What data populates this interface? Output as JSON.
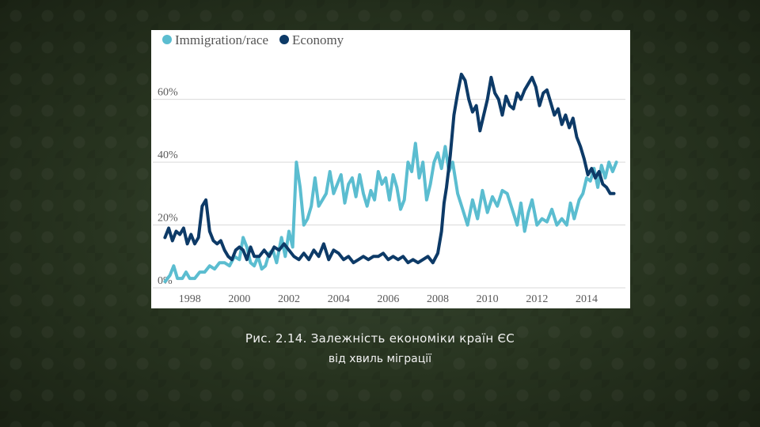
{
  "chart_data": {
    "type": "line",
    "title": "",
    "xlabel": "",
    "ylabel": "",
    "xlim": [
      1996.7,
      2015.5
    ],
    "ylim": [
      0,
      72
    ],
    "yticks": [
      0,
      20,
      40,
      60
    ],
    "ytick_labels": [
      "0%",
      "20%",
      "40%",
      "60%"
    ],
    "xticks": [
      1998,
      2000,
      2002,
      2004,
      2006,
      2008,
      2010,
      2012,
      2014
    ],
    "xtick_labels": [
      "1998",
      "2000",
      "2002",
      "2004",
      "2006",
      "2008",
      "2010",
      "2012",
      "2014"
    ],
    "grid": "horizontal",
    "legend": "top-left",
    "series": [
      {
        "name": "Immigration/race",
        "color": "#5bbdd0",
        "points": [
          [
            1997.0,
            2
          ],
          [
            1997.2,
            4
          ],
          [
            1997.35,
            7
          ],
          [
            1997.5,
            3
          ],
          [
            1997.7,
            3
          ],
          [
            1997.85,
            5
          ],
          [
            1998.0,
            3
          ],
          [
            1998.2,
            3
          ],
          [
            1998.4,
            5
          ],
          [
            1998.6,
            5
          ],
          [
            1998.8,
            7
          ],
          [
            1999.0,
            6
          ],
          [
            1999.2,
            8
          ],
          [
            1999.4,
            8
          ],
          [
            1999.6,
            7
          ],
          [
            1999.8,
            10
          ],
          [
            2000.0,
            9
          ],
          [
            2000.15,
            16
          ],
          [
            2000.3,
            13
          ],
          [
            2000.45,
            8
          ],
          [
            2000.6,
            7
          ],
          [
            2000.75,
            10
          ],
          [
            2000.9,
            6
          ],
          [
            2001.05,
            7
          ],
          [
            2001.2,
            11
          ],
          [
            2001.35,
            12
          ],
          [
            2001.5,
            8
          ],
          [
            2001.7,
            16
          ],
          [
            2001.85,
            10
          ],
          [
            2002.0,
            18
          ],
          [
            2002.15,
            13
          ],
          [
            2002.3,
            40
          ],
          [
            2002.45,
            32
          ],
          [
            2002.6,
            20
          ],
          [
            2002.75,
            22
          ],
          [
            2002.9,
            26
          ],
          [
            2003.05,
            35
          ],
          [
            2003.2,
            26
          ],
          [
            2003.35,
            28
          ],
          [
            2003.5,
            30
          ],
          [
            2003.65,
            37
          ],
          [
            2003.8,
            30
          ],
          [
            2003.95,
            33
          ],
          [
            2004.1,
            36
          ],
          [
            2004.25,
            27
          ],
          [
            2004.4,
            33
          ],
          [
            2004.55,
            35
          ],
          [
            2004.7,
            29
          ],
          [
            2004.85,
            36
          ],
          [
            2005.0,
            30
          ],
          [
            2005.15,
            26
          ],
          [
            2005.3,
            31
          ],
          [
            2005.45,
            28
          ],
          [
            2005.6,
            37
          ],
          [
            2005.75,
            33
          ],
          [
            2005.9,
            35
          ],
          [
            2006.05,
            28
          ],
          [
            2006.2,
            36
          ],
          [
            2006.35,
            32
          ],
          [
            2006.5,
            25
          ],
          [
            2006.65,
            28
          ],
          [
            2006.8,
            40
          ],
          [
            2006.95,
            37
          ],
          [
            2007.1,
            46
          ],
          [
            2007.25,
            35
          ],
          [
            2007.4,
            40
          ],
          [
            2007.55,
            28
          ],
          [
            2007.7,
            33
          ],
          [
            2007.85,
            40
          ],
          [
            2008.0,
            43
          ],
          [
            2008.15,
            38
          ],
          [
            2008.3,
            45
          ],
          [
            2008.45,
            37
          ],
          [
            2008.6,
            40
          ],
          [
            2008.8,
            30
          ],
          [
            2009.0,
            25
          ],
          [
            2009.2,
            20
          ],
          [
            2009.4,
            28
          ],
          [
            2009.6,
            22
          ],
          [
            2009.8,
            31
          ],
          [
            2010.0,
            24
          ],
          [
            2010.2,
            29
          ],
          [
            2010.4,
            26
          ],
          [
            2010.6,
            31
          ],
          [
            2010.8,
            30
          ],
          [
            2011.0,
            25
          ],
          [
            2011.2,
            20
          ],
          [
            2011.35,
            27
          ],
          [
            2011.5,
            18
          ],
          [
            2011.65,
            24
          ],
          [
            2011.8,
            28
          ],
          [
            2012.0,
            20
          ],
          [
            2012.2,
            22
          ],
          [
            2012.4,
            21
          ],
          [
            2012.6,
            25
          ],
          [
            2012.8,
            20
          ],
          [
            2013.0,
            22
          ],
          [
            2013.2,
            20
          ],
          [
            2013.35,
            27
          ],
          [
            2013.5,
            22
          ],
          [
            2013.7,
            28
          ],
          [
            2013.85,
            30
          ],
          [
            2014.0,
            35
          ],
          [
            2014.15,
            34
          ],
          [
            2014.3,
            38
          ],
          [
            2014.45,
            32
          ],
          [
            2014.6,
            39
          ],
          [
            2014.75,
            35
          ],
          [
            2014.9,
            40
          ],
          [
            2015.05,
            37
          ],
          [
            2015.2,
            40
          ]
        ]
      },
      {
        "name": "Economy",
        "color": "#0d3a67",
        "points": [
          [
            1997.0,
            16
          ],
          [
            1997.15,
            19
          ],
          [
            1997.3,
            15
          ],
          [
            1997.45,
            18
          ],
          [
            1997.6,
            17
          ],
          [
            1997.75,
            19
          ],
          [
            1997.9,
            14
          ],
          [
            1998.05,
            17
          ],
          [
            1998.2,
            14
          ],
          [
            1998.35,
            16
          ],
          [
            1998.5,
            26
          ],
          [
            1998.65,
            28
          ],
          [
            1998.8,
            18
          ],
          [
            1998.95,
            15
          ],
          [
            1999.1,
            14
          ],
          [
            1999.25,
            15
          ],
          [
            1999.4,
            12
          ],
          [
            1999.55,
            10
          ],
          [
            1999.7,
            9
          ],
          [
            1999.85,
            12
          ],
          [
            2000.0,
            13
          ],
          [
            2000.15,
            12
          ],
          [
            2000.3,
            9
          ],
          [
            2000.45,
            13
          ],
          [
            2000.6,
            10
          ],
          [
            2000.8,
            10
          ],
          [
            2001.0,
            12
          ],
          [
            2001.2,
            10
          ],
          [
            2001.4,
            13
          ],
          [
            2001.6,
            12
          ],
          [
            2001.8,
            14
          ],
          [
            2002.0,
            12
          ],
          [
            2002.2,
            10
          ],
          [
            2002.4,
            9
          ],
          [
            2002.6,
            11
          ],
          [
            2002.8,
            9
          ],
          [
            2003.0,
            12
          ],
          [
            2003.2,
            10
          ],
          [
            2003.4,
            14
          ],
          [
            2003.6,
            9
          ],
          [
            2003.8,
            12
          ],
          [
            2004.0,
            11
          ],
          [
            2004.2,
            9
          ],
          [
            2004.4,
            10
          ],
          [
            2004.6,
            8
          ],
          [
            2004.8,
            9
          ],
          [
            2005.0,
            10
          ],
          [
            2005.2,
            9
          ],
          [
            2005.4,
            10
          ],
          [
            2005.6,
            10
          ],
          [
            2005.8,
            11
          ],
          [
            2006.0,
            9
          ],
          [
            2006.2,
            10
          ],
          [
            2006.4,
            9
          ],
          [
            2006.6,
            10
          ],
          [
            2006.8,
            8
          ],
          [
            2007.0,
            9
          ],
          [
            2007.2,
            8
          ],
          [
            2007.4,
            9
          ],
          [
            2007.6,
            10
          ],
          [
            2007.8,
            8
          ],
          [
            2008.0,
            11
          ],
          [
            2008.15,
            18
          ],
          [
            2008.25,
            27
          ],
          [
            2008.35,
            32
          ],
          [
            2008.5,
            42
          ],
          [
            2008.65,
            55
          ],
          [
            2008.8,
            62
          ],
          [
            2008.95,
            68
          ],
          [
            2009.1,
            66
          ],
          [
            2009.25,
            60
          ],
          [
            2009.4,
            56
          ],
          [
            2009.55,
            58
          ],
          [
            2009.7,
            50
          ],
          [
            2009.85,
            55
          ],
          [
            2010.0,
            60
          ],
          [
            2010.15,
            67
          ],
          [
            2010.3,
            62
          ],
          [
            2010.45,
            60
          ],
          [
            2010.6,
            55
          ],
          [
            2010.75,
            61
          ],
          [
            2010.9,
            58
          ],
          [
            2011.05,
            57
          ],
          [
            2011.2,
            62
          ],
          [
            2011.35,
            60
          ],
          [
            2011.5,
            63
          ],
          [
            2011.65,
            65
          ],
          [
            2011.8,
            67
          ],
          [
            2011.95,
            64
          ],
          [
            2012.1,
            58
          ],
          [
            2012.25,
            62
          ],
          [
            2012.4,
            63
          ],
          [
            2012.55,
            59
          ],
          [
            2012.7,
            55
          ],
          [
            2012.85,
            57
          ],
          [
            2013.0,
            52
          ],
          [
            2013.15,
            55
          ],
          [
            2013.3,
            51
          ],
          [
            2013.45,
            54
          ],
          [
            2013.6,
            48
          ],
          [
            2013.75,
            45
          ],
          [
            2013.9,
            41
          ],
          [
            2014.05,
            36
          ],
          [
            2014.2,
            38
          ],
          [
            2014.35,
            35
          ],
          [
            2014.5,
            37
          ],
          [
            2014.65,
            33
          ],
          [
            2014.8,
            32
          ],
          [
            2014.95,
            30
          ],
          [
            2015.1,
            30
          ]
        ]
      }
    ]
  },
  "caption": {
    "line1": "Рис. 2.14. Залежність економіки країн ЄС",
    "line2": "від хвиль міграції"
  }
}
